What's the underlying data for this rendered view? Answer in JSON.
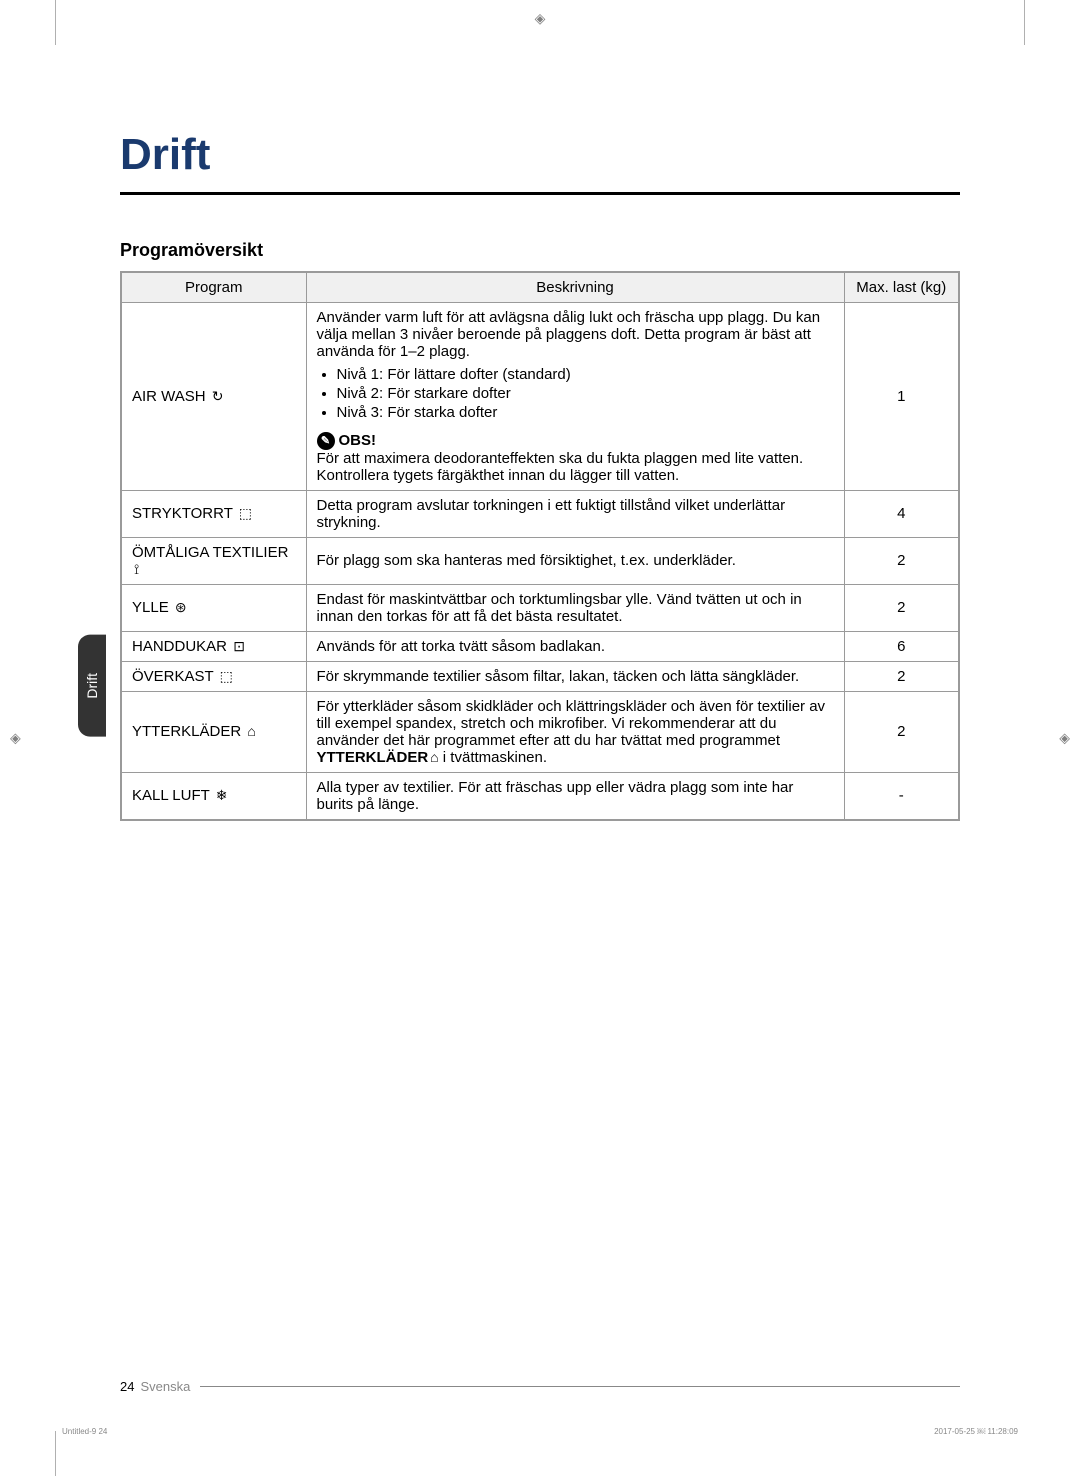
{
  "crop_mark": "◈",
  "main_title": "Drift",
  "subtitle": "Programöversikt",
  "side_tab": "Drift",
  "table": {
    "headers": {
      "program": "Program",
      "description": "Beskrivning",
      "max_load": "Max. last (kg)"
    },
    "rows": {
      "air_wash": {
        "name": "AIR WASH",
        "icon": "↻",
        "desc_intro": "Använder varm luft för att avlägsna dålig lukt och fräscha upp plagg. Du kan välja mellan 3 nivåer beroende på plaggens doft. Detta program är bäst att använda för 1–2 plagg.",
        "level1": "Nivå 1: För lättare dofter (standard)",
        "level2": "Nivå 2: För starkare dofter",
        "level3": "Nivå 3: För starka dofter",
        "note_label": "OBS!",
        "note_text": "För att maximera deodoranteffekten ska du fukta plaggen med lite vatten. Kontrollera tygets färgäkthet innan du lägger till vatten.",
        "max": "1"
      },
      "stryktorrt": {
        "name": "STRYKTORRT",
        "icon": "⬚",
        "desc": "Detta program avslutar torkningen i ett fuktigt tillstånd vilket underlättar strykning.",
        "max": "4"
      },
      "omtaliga": {
        "name": "ÖMTÅLIGA TEXTILIER",
        "icon": "⟟",
        "desc": "För plagg som ska hanteras med försiktighet, t.ex. underkläder.",
        "max": "2"
      },
      "ylle": {
        "name": "YLLE",
        "icon": "⊛",
        "desc": "Endast för maskintvättbar och torktumlingsbar ylle. Vänd tvätten ut och in innan den torkas för att få det bästa resultatet.",
        "max": "2"
      },
      "handdukar": {
        "name": "HANDDUKAR",
        "icon": "⊡",
        "desc": "Används för att torka tvätt såsom badlakan.",
        "max": "6"
      },
      "overkast": {
        "name": "ÖVERKAST",
        "icon": "⬚",
        "desc": "För skrymmande textilier såsom filtar, lakan, täcken och lätta sängkläder.",
        "max": "2"
      },
      "ytterklader": {
        "name": "YTTERKLÄDER",
        "icon": "⌂",
        "desc_part1": "För ytterkläder såsom skidkläder och klättringskläder och även för textilier av till exempel spandex, stretch och mikrofiber. Vi rekommenderar att du använder det här programmet efter att du har tvättat med programmet ",
        "desc_bold": "YTTERKLÄDER",
        "desc_part2": " i tvättmaskinen.",
        "max": "2"
      },
      "kall_luft": {
        "name": "KALL LUFT",
        "icon": "❄",
        "desc": "Alla typer av textilier. För att fräschas upp eller vädra plagg som inte har burits på länge.",
        "max": "-"
      }
    }
  },
  "footer": {
    "page_num": "24",
    "language": "Svenska"
  },
  "doc_info": {
    "left": "Untitled-9   24",
    "right": "2017-05-25   ￼ 11:28:09"
  }
}
